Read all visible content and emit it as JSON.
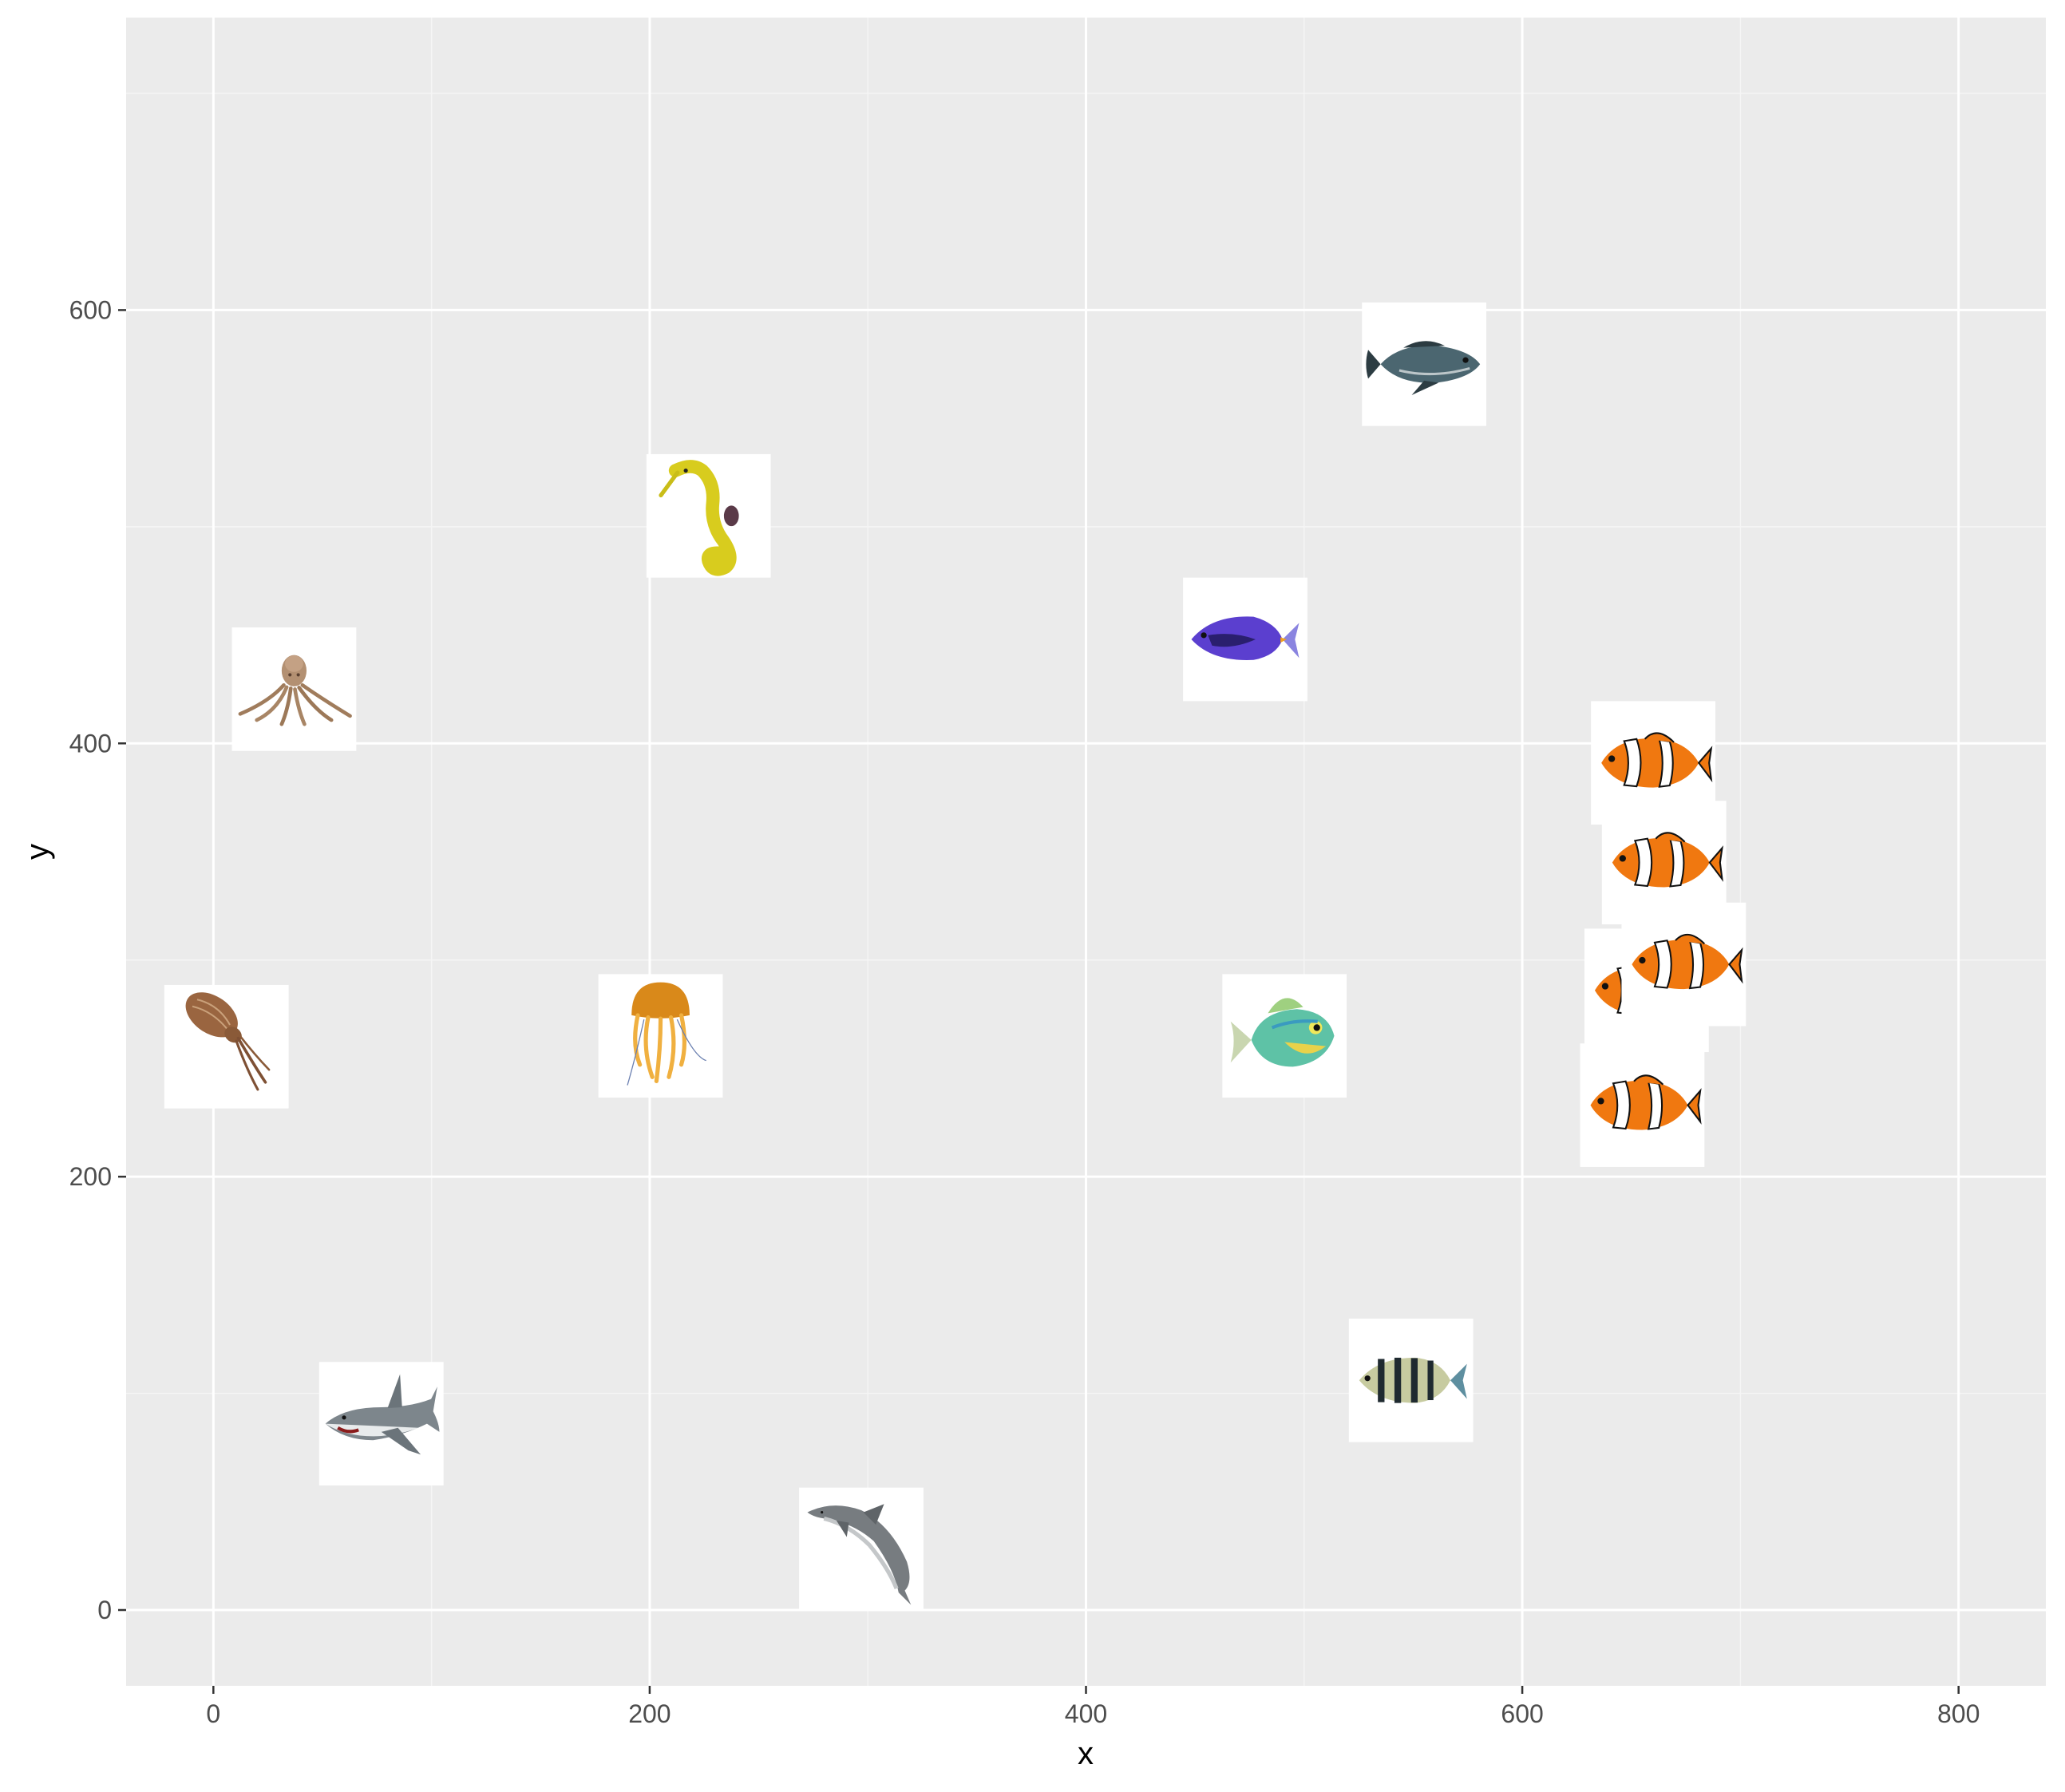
{
  "colors": {
    "panel_background": "#EBEBEB",
    "grid_major": "#FFFFFF",
    "grid_minor": "#F5F5F5",
    "tick_text": "#4D4D4D",
    "tile_background": "#FFFFFF"
  },
  "chart_data": {
    "type": "scatter",
    "marker": "animal images",
    "xlabel": "x",
    "ylabel": "y",
    "xlim": [
      -40,
      840
    ],
    "ylim": [
      -35,
      735
    ],
    "x_ticks": [
      0,
      200,
      400,
      600,
      800
    ],
    "y_ticks": [
      0,
      200,
      400,
      600
    ],
    "grid": true,
    "points": [
      {
        "image": "octopus",
        "x": 37,
        "y": 425
      },
      {
        "image": "cuttlefish",
        "x": 6,
        "y": 260
      },
      {
        "image": "shark",
        "x": 77,
        "y": 86
      },
      {
        "image": "seahorse",
        "x": 227,
        "y": 505
      },
      {
        "image": "jellyfish",
        "x": 205,
        "y": 265
      },
      {
        "image": "dolphin",
        "x": 297,
        "y": 28
      },
      {
        "image": "blue-tang",
        "x": 473,
        "y": 448
      },
      {
        "image": "grouper",
        "x": 555,
        "y": 575
      },
      {
        "image": "bluegill",
        "x": 491,
        "y": 265
      },
      {
        "image": "sergeant-major",
        "x": 549,
        "y": 106
      },
      {
        "image": "clownfish",
        "x": 660,
        "y": 391
      },
      {
        "image": "clownfish",
        "x": 665,
        "y": 345
      },
      {
        "image": "clownfish",
        "x": 657,
        "y": 286
      },
      {
        "image": "clownfish",
        "x": 674,
        "y": 298
      },
      {
        "image": "clownfish",
        "x": 655,
        "y": 233
      }
    ]
  }
}
